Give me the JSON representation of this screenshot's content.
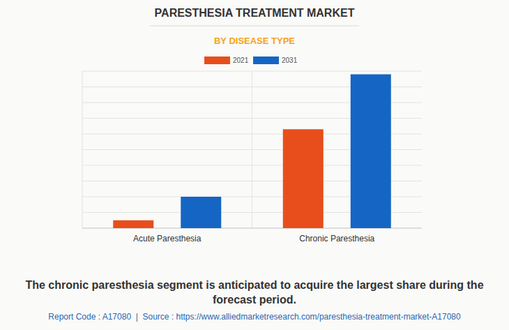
{
  "chart_data": {
    "type": "bar",
    "title": "PARESTHESIA TREATMENT MARKET",
    "subtitle": "BY DISEASE TYPE",
    "categories": [
      "Acute Paresthesia",
      "Chronic Paresthesia"
    ],
    "series": [
      {
        "name": "2021",
        "color": "#e84e1c",
        "values": [
          0.5,
          6.3
        ]
      },
      {
        "name": "2031",
        "color": "#1565c4",
        "values": [
          2,
          9.8
        ]
      }
    ],
    "ylim": [
      0,
      10
    ],
    "yticks": [
      0,
      1,
      2,
      3,
      4,
      5,
      6,
      7,
      8,
      9,
      10
    ],
    "grid": true,
    "tick_labels": "x",
    "legend": "top",
    "annotations": [
      "The chronic paresthesia segment is anticipated to acquire the largest share during the forecast period.",
      "Report Code : A17080  |  Source : https://www.alliedmarketresearch.com/paresthesia-treatment-market-A17080"
    ]
  }
}
